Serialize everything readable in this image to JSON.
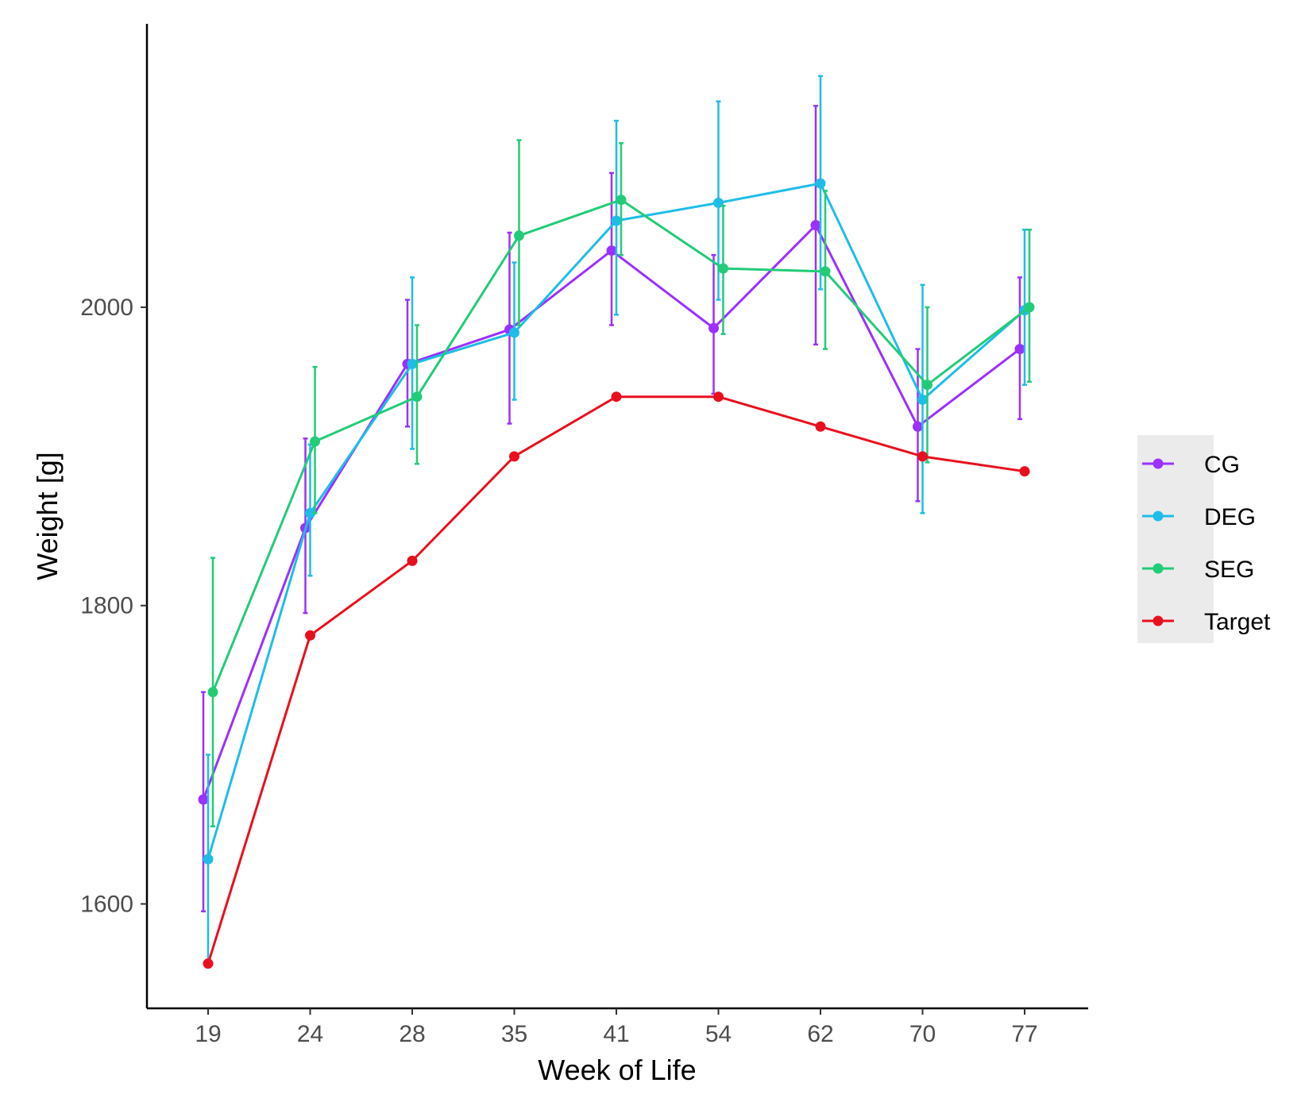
{
  "chart_data": {
    "type": "line",
    "title": "",
    "xlabel": "Week of Life",
    "ylabel": "Weight [g]",
    "categories": [
      "19",
      "24",
      "28",
      "35",
      "41",
      "54",
      "62",
      "70",
      "77"
    ],
    "ylim": [
      1530,
      2190
    ],
    "yticks": [
      1600,
      1800,
      2000
    ],
    "error_bars": true,
    "legend_position": "right",
    "series": [
      {
        "name": "CG",
        "color": "#9b30ff",
        "values": [
          1670,
          1852,
          1962,
          1985,
          2038,
          1986,
          2055,
          1920,
          1972
        ],
        "lower": [
          1595,
          1795,
          1920,
          1922,
          1988,
          1942,
          1975,
          1870,
          1925
        ],
        "upper": [
          1742,
          1912,
          2005,
          2050,
          2090,
          2035,
          2135,
          1972,
          2020
        ]
      },
      {
        "name": "DEG",
        "color": "#1ebde8",
        "values": [
          1630,
          1862,
          1962,
          1983,
          2058,
          2070,
          2083,
          1938,
          1998
        ],
        "lower": [
          1558,
          1820,
          1905,
          1938,
          1995,
          2005,
          2012,
          1862,
          1948
        ],
        "upper": [
          1700,
          1908,
          2020,
          2030,
          2125,
          2138,
          2155,
          2015,
          2052
        ]
      },
      {
        "name": "SEG",
        "color": "#22cc77",
        "values": [
          1742,
          1910,
          1940,
          2048,
          2072,
          2026,
          2024,
          1948,
          2000
        ],
        "lower": [
          1652,
          1862,
          1895,
          1988,
          2035,
          1982,
          1972,
          1896,
          1950
        ],
        "upper": [
          1832,
          1960,
          1988,
          2112,
          2110,
          2068,
          2078,
          2000,
          2052
        ]
      },
      {
        "name": "Target",
        "color": "#e8101e",
        "values": [
          1560,
          1780,
          1830,
          1900,
          1940,
          1940,
          1920,
          1900,
          1890
        ]
      }
    ]
  }
}
